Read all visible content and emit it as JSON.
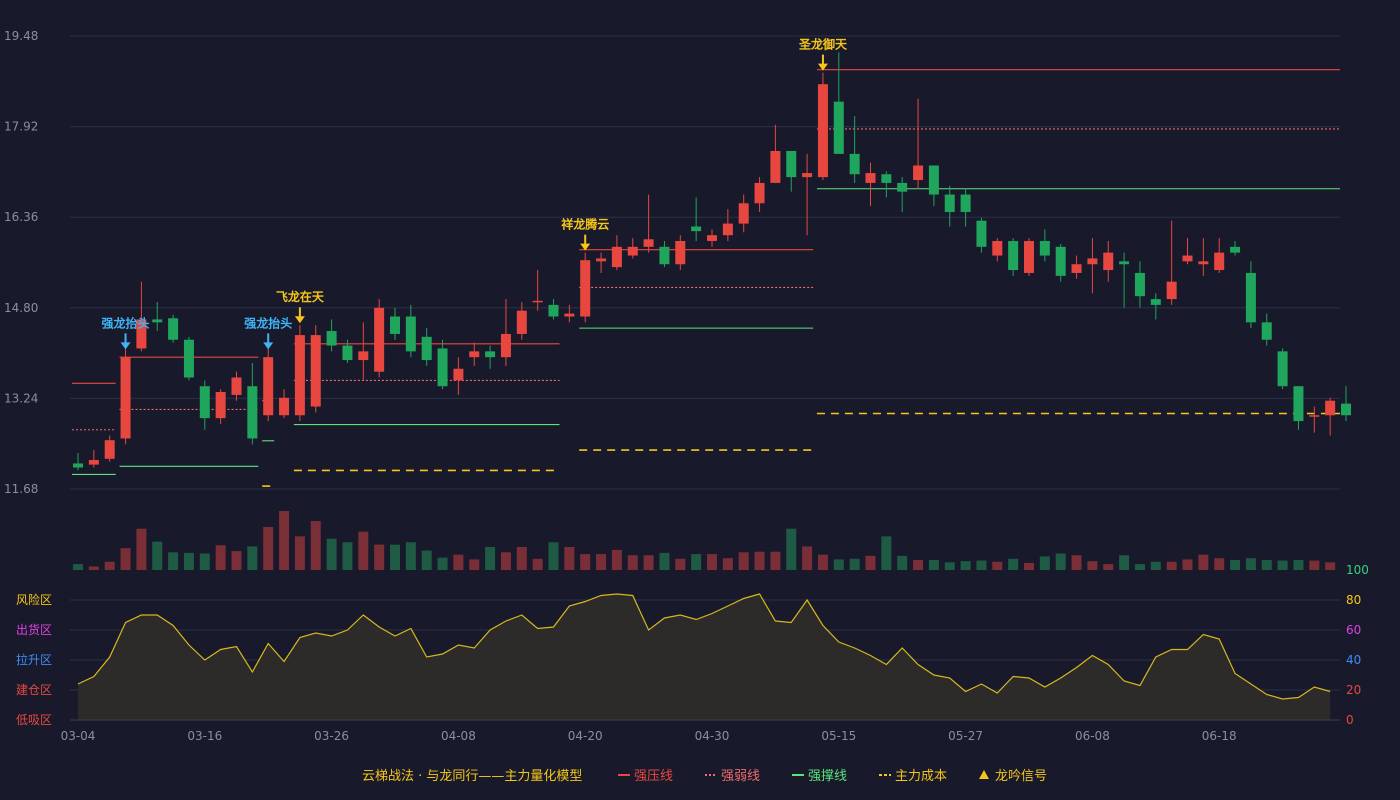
{
  "chart_data": {
    "type": "candlestick",
    "title": "云梯战法 · 与龙同行——主力量化模型",
    "colors": {
      "up": "#e8473f",
      "down": "#1fa55c",
      "strong_press": "#e8473f",
      "weak_line": "#f06a6a",
      "support": "#5be37a",
      "cost": "#f5c518",
      "signal": "#f5c518",
      "signal_blue": "#3fb4f5",
      "osc_line": "#d6b81c",
      "grid": "#2c3044",
      "axis_text": "#8a8e9c"
    },
    "price_axis": {
      "min": 11.68,
      "max": 19.48,
      "ticks": [
        "19.48",
        "17.92",
        "16.36",
        "14.80",
        "13.24",
        "11.68"
      ]
    },
    "date_ticks": [
      {
        "label": "03-04",
        "i": 0
      },
      {
        "label": "03-16",
        "i": 8
      },
      {
        "label": "03-26",
        "i": 16
      },
      {
        "label": "04-08",
        "i": 24
      },
      {
        "label": "04-20",
        "i": 32
      },
      {
        "label": "04-30",
        "i": 40
      },
      {
        "label": "05-15",
        "i": 48
      },
      {
        "label": "05-27",
        "i": 56
      },
      {
        "label": "06-08",
        "i": 64
      },
      {
        "label": "06-18",
        "i": 72
      }
    ],
    "ohlc": [
      [
        12.12,
        12.05,
        12.3,
        12.0
      ],
      [
        12.1,
        12.18,
        12.35,
        12.05
      ],
      [
        12.2,
        12.52,
        12.6,
        12.15
      ],
      [
        12.55,
        13.95,
        14.1,
        12.45
      ],
      [
        14.1,
        14.6,
        15.25,
        14.05
      ],
      [
        14.6,
        14.55,
        14.9,
        14.4
      ],
      [
        14.62,
        14.25,
        14.68,
        14.2
      ],
      [
        14.25,
        13.6,
        14.3,
        13.55
      ],
      [
        13.45,
        12.9,
        13.55,
        12.7
      ],
      [
        12.9,
        13.35,
        13.4,
        12.8
      ],
      [
        13.3,
        13.6,
        13.7,
        13.2
      ],
      [
        13.45,
        12.55,
        13.85,
        12.45
      ],
      [
        12.95,
        13.95,
        14.1,
        12.85
      ],
      [
        12.95,
        13.25,
        13.4,
        12.9
      ],
      [
        12.95,
        14.33,
        14.5,
        12.85
      ],
      [
        13.1,
        14.33,
        14.5,
        13.0
      ],
      [
        14.4,
        14.15,
        14.6,
        14.05
      ],
      [
        14.15,
        13.9,
        14.25,
        13.85
      ],
      [
        13.9,
        14.05,
        14.55,
        13.55
      ],
      [
        13.7,
        14.8,
        14.95,
        13.6
      ],
      [
        14.65,
        14.35,
        14.8,
        14.25
      ],
      [
        14.65,
        14.05,
        14.85,
        13.95
      ],
      [
        14.3,
        13.9,
        14.45,
        13.8
      ],
      [
        14.1,
        13.45,
        14.25,
        13.4
      ],
      [
        13.55,
        13.75,
        13.95,
        13.3
      ],
      [
        13.95,
        14.05,
        14.2,
        13.8
      ],
      [
        14.05,
        13.95,
        14.15,
        13.75
      ],
      [
        13.95,
        14.35,
        14.95,
        13.8
      ],
      [
        14.35,
        14.75,
        14.9,
        14.25
      ],
      [
        14.9,
        14.92,
        15.45,
        14.75
      ],
      [
        14.85,
        14.65,
        14.95,
        14.6
      ],
      [
        14.65,
        14.7,
        14.85,
        14.55
      ],
      [
        14.65,
        15.62,
        15.75,
        14.55
      ],
      [
        15.6,
        15.65,
        15.75,
        15.4
      ],
      [
        15.5,
        15.85,
        16.05,
        15.45
      ],
      [
        15.7,
        15.85,
        16.0,
        15.65
      ],
      [
        15.85,
        15.98,
        16.75,
        15.75
      ],
      [
        15.85,
        15.55,
        15.95,
        15.5
      ],
      [
        15.55,
        15.95,
        16.05,
        15.45
      ],
      [
        16.2,
        16.12,
        16.7,
        15.95
      ],
      [
        15.95,
        16.05,
        16.15,
        15.85
      ],
      [
        16.05,
        16.25,
        16.5,
        15.95
      ],
      [
        16.25,
        16.6,
        16.75,
        16.1
      ],
      [
        16.6,
        16.95,
        17.05,
        16.45
      ],
      [
        16.95,
        17.5,
        17.95,
        16.95
      ],
      [
        17.5,
        17.05,
        17.5,
        16.8
      ],
      [
        17.05,
        17.12,
        17.45,
        16.05
      ],
      [
        17.05,
        18.65,
        18.85,
        17.0
      ],
      [
        18.35,
        17.45,
        19.2,
        17.45
      ],
      [
        17.45,
        17.1,
        18.1,
        16.95
      ],
      [
        16.95,
        17.12,
        17.3,
        16.55
      ],
      [
        17.1,
        16.95,
        17.15,
        16.7
      ],
      [
        16.95,
        16.8,
        17.05,
        16.45
      ],
      [
        17.0,
        17.25,
        18.4,
        16.85
      ],
      [
        17.25,
        16.75,
        17.25,
        16.55
      ],
      [
        16.75,
        16.45,
        16.9,
        16.2
      ],
      [
        16.75,
        16.45,
        16.85,
        16.2
      ],
      [
        16.3,
        15.85,
        16.35,
        15.75
      ],
      [
        15.7,
        15.95,
        16.0,
        15.6
      ],
      [
        15.95,
        15.45,
        16.0,
        15.35
      ],
      [
        15.4,
        15.95,
        16.0,
        15.35
      ],
      [
        15.95,
        15.7,
        16.15,
        15.6
      ],
      [
        15.85,
        15.35,
        15.9,
        15.25
      ],
      [
        15.4,
        15.55,
        15.7,
        15.3
      ],
      [
        15.55,
        15.65,
        16.0,
        15.05
      ],
      [
        15.45,
        15.75,
        15.95,
        15.25
      ],
      [
        15.6,
        15.55,
        15.75,
        14.8
      ],
      [
        15.4,
        15.0,
        15.6,
        14.8
      ],
      [
        14.95,
        14.85,
        15.05,
        14.6
      ],
      [
        14.95,
        15.25,
        16.3,
        14.85
      ],
      [
        15.6,
        15.7,
        16.0,
        15.55
      ],
      [
        15.55,
        15.6,
        16.0,
        15.35
      ],
      [
        15.45,
        15.75,
        16.0,
        15.4
      ],
      [
        15.85,
        15.75,
        15.95,
        15.7
      ],
      [
        15.4,
        14.55,
        15.6,
        14.45
      ],
      [
        14.55,
        14.25,
        14.7,
        14.15
      ],
      [
        14.05,
        13.45,
        14.1,
        13.4
      ],
      [
        13.45,
        12.85,
        13.45,
        12.7
      ],
      [
        12.95,
        12.95,
        13.1,
        12.65
      ],
      [
        12.95,
        13.2,
        13.25,
        12.6
      ],
      [
        13.15,
        12.95,
        13.45,
        12.85
      ]
    ],
    "volume_relative": [
      0.1,
      0.06,
      0.14,
      0.37,
      0.7,
      0.48,
      0.3,
      0.29,
      0.28,
      0.42,
      0.32,
      0.4,
      0.73,
      1.0,
      0.57,
      0.83,
      0.53,
      0.47,
      0.65,
      0.43,
      0.43,
      0.47,
      0.33,
      0.21,
      0.26,
      0.18,
      0.39,
      0.3,
      0.39,
      0.19,
      0.47,
      0.39,
      0.27,
      0.27,
      0.34,
      0.25,
      0.25,
      0.29,
      0.19,
      0.27,
      0.27,
      0.2,
      0.3,
      0.31,
      0.31,
      0.7,
      0.4,
      0.26,
      0.18,
      0.19,
      0.24,
      0.57,
      0.24,
      0.17,
      0.17,
      0.13,
      0.15,
      0.16,
      0.14,
      0.19,
      0.12,
      0.23,
      0.28,
      0.25,
      0.15,
      0.1,
      0.25,
      0.1,
      0.14,
      0.14,
      0.18,
      0.26,
      0.2,
      0.17,
      0.2,
      0.17,
      0.16,
      0.17,
      0.16,
      0.13
    ],
    "oscillator": {
      "scale": [
        0,
        100
      ],
      "ticks": [
        "100",
        "80",
        "60",
        "40",
        "20",
        "0"
      ],
      "zones": [
        {
          "label": "风险区",
          "level": 80,
          "color": "#f5c518"
        },
        {
          "label": "出货区",
          "level": 60,
          "color": "#e040e0"
        },
        {
          "label": "拉升区",
          "level": 40,
          "color": "#3f8cf5"
        },
        {
          "label": "建仓区",
          "level": 20,
          "color": "#e8473f"
        },
        {
          "label": "低吸区",
          "level": 0,
          "color": "#e8473f"
        }
      ],
      "values": [
        24,
        29,
        42,
        65,
        70,
        70,
        63,
        50,
        40,
        47,
        49,
        32,
        51,
        39,
        55,
        58,
        56,
        60,
        70,
        62,
        56,
        61,
        42,
        44,
        50,
        48,
        60,
        66,
        70,
        61,
        62,
        76,
        79,
        83,
        84,
        83,
        60,
        68,
        70,
        67,
        71,
        76,
        81,
        84,
        66,
        65,
        80,
        63,
        52,
        48,
        43,
        37,
        48,
        37,
        30,
        28,
        19,
        24,
        18,
        29,
        28,
        22,
        28,
        35,
        43,
        37,
        26,
        23,
        42,
        47,
        47,
        57,
        54,
        31,
        24,
        17,
        14,
        15,
        22,
        19
      ]
    },
    "signals": [
      {
        "label": "强龙抬头",
        "i": 3,
        "color": "signal_blue",
        "y": 14.05
      },
      {
        "label": "强龙抬头",
        "i": 12,
        "color": "signal_blue",
        "y": 14.05
      },
      {
        "label": "飞龙在天",
        "i": 14,
        "color": "signal",
        "y": 14.5
      },
      {
        "label": "祥龙腾云",
        "i": 32,
        "color": "signal",
        "y": 15.75
      },
      {
        "label": "圣龙御天",
        "i": 47,
        "color": "signal",
        "y": 18.85
      }
    ],
    "levels": [
      {
        "kind": "strong_press",
        "from": 0,
        "to": 2,
        "y": 13.5,
        "style": "solid"
      },
      {
        "kind": "weak_line",
        "from": 0,
        "to": 2,
        "y": 12.7,
        "style": "dot"
      },
      {
        "kind": "support",
        "from": 0,
        "to": 2,
        "y": 11.93,
        "style": "solid"
      },
      {
        "kind": "strong_press",
        "from": 3,
        "to": 11,
        "y": 13.95,
        "style": "solid"
      },
      {
        "kind": "weak_line",
        "from": 3,
        "to": 11,
        "y": 13.05,
        "style": "dot"
      },
      {
        "kind": "support",
        "from": 3,
        "to": 11,
        "y": 12.07,
        "style": "solid"
      },
      {
        "kind": "weak_line",
        "from": 12,
        "to": 12,
        "y": 13.2,
        "style": "dot"
      },
      {
        "kind": "support",
        "from": 12,
        "to": 12,
        "y": 12.51,
        "style": "solid"
      },
      {
        "kind": "cost",
        "from": 12,
        "to": 12,
        "y": 11.73,
        "style": "dash"
      },
      {
        "kind": "strong_press",
        "from": 14,
        "to": 30,
        "y": 14.18,
        "style": "solid"
      },
      {
        "kind": "weak_line",
        "from": 14,
        "to": 30,
        "y": 13.55,
        "style": "dot"
      },
      {
        "kind": "support",
        "from": 14,
        "to": 30,
        "y": 12.79,
        "style": "solid"
      },
      {
        "kind": "cost",
        "from": 14,
        "to": 30,
        "y": 12.0,
        "style": "dash"
      },
      {
        "kind": "strong_press",
        "from": 32,
        "to": 46,
        "y": 15.8,
        "style": "solid"
      },
      {
        "kind": "weak_line",
        "from": 32,
        "to": 46,
        "y": 15.15,
        "style": "dot"
      },
      {
        "kind": "support",
        "from": 32,
        "to": 46,
        "y": 14.45,
        "style": "solid"
      },
      {
        "kind": "cost",
        "from": 32,
        "to": 46,
        "y": 12.35,
        "style": "dash"
      },
      {
        "kind": "strong_press",
        "from": 47,
        "to": 79,
        "y": 18.9,
        "style": "solid"
      },
      {
        "kind": "weak_line",
        "from": 47,
        "to": 79,
        "y": 17.88,
        "style": "dot"
      },
      {
        "kind": "support",
        "from": 47,
        "to": 79,
        "y": 16.85,
        "style": "solid"
      },
      {
        "kind": "cost",
        "from": 47,
        "to": 79,
        "y": 12.98,
        "style": "dash"
      }
    ],
    "legend": [
      {
        "label": "云梯战法 · 与龙同行——主力量化模型",
        "kind": "title"
      },
      {
        "label": "强压线",
        "kind": "strong_press"
      },
      {
        "label": "强弱线",
        "kind": "weak_line"
      },
      {
        "label": "强撑线",
        "kind": "support"
      },
      {
        "label": "主力成本",
        "kind": "cost"
      },
      {
        "label": "龙吟信号",
        "kind": "signal"
      }
    ]
  }
}
